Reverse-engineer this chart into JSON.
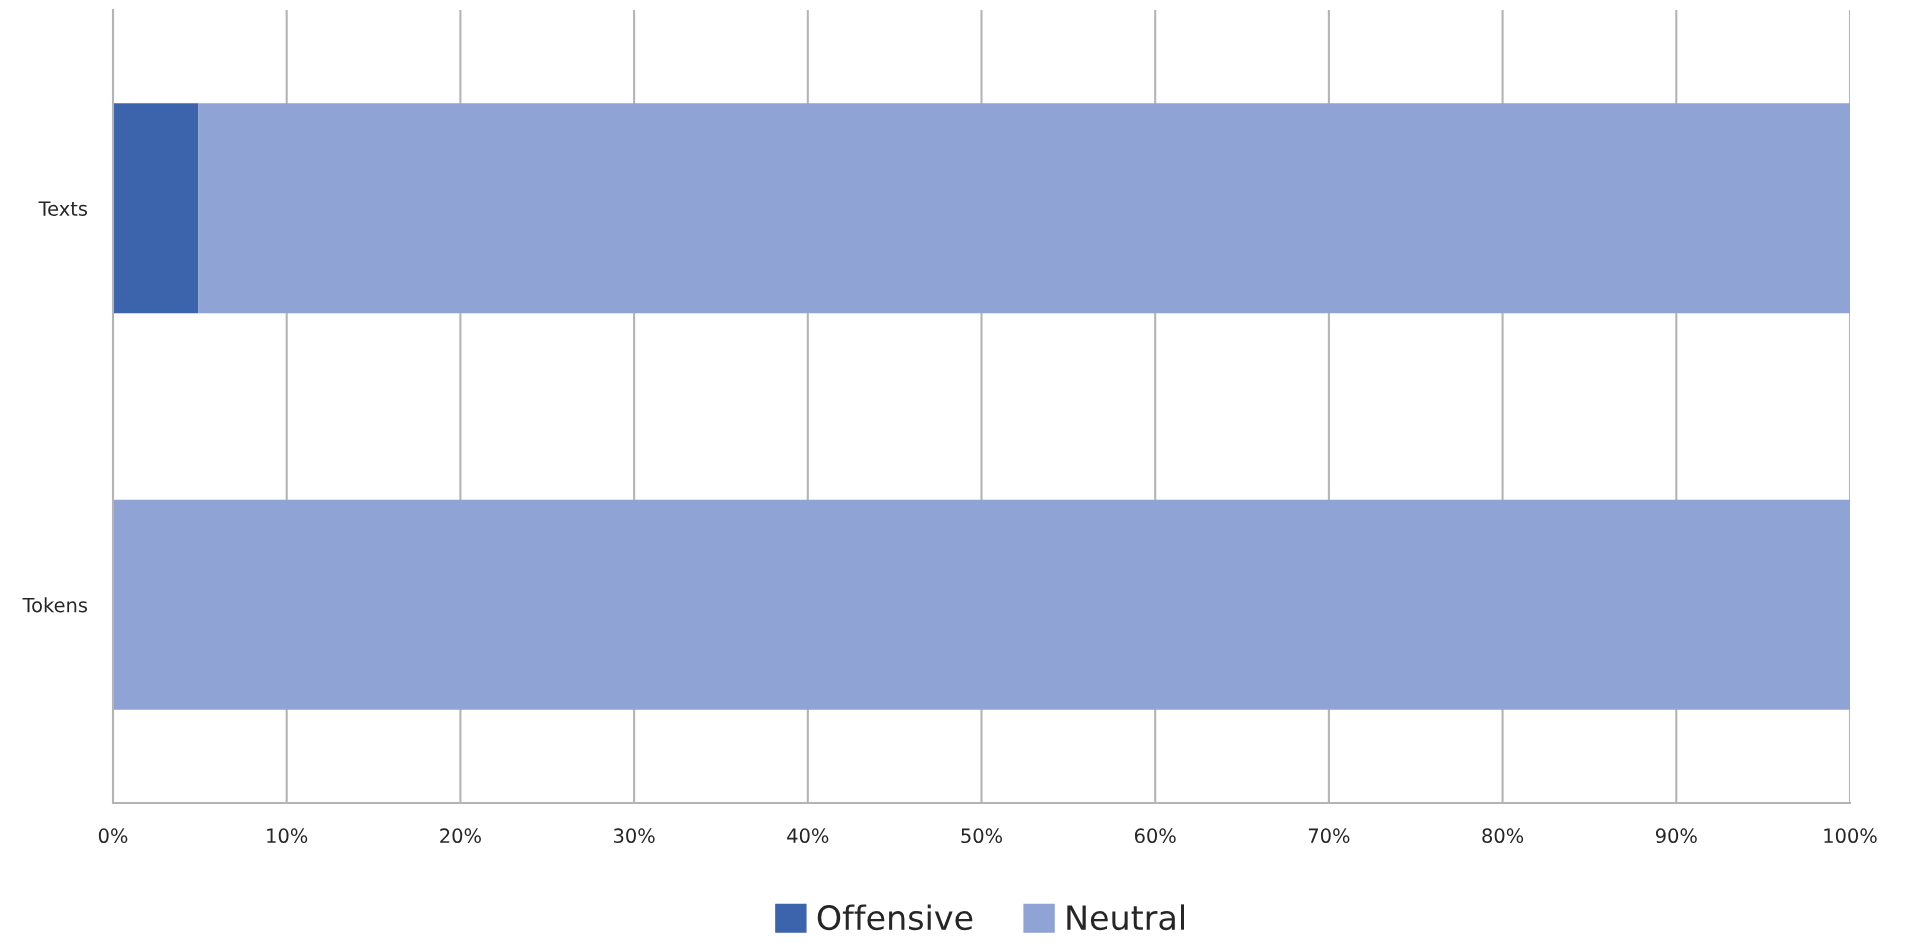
{
  "chart_data": {
    "type": "bar",
    "orientation": "horizontal",
    "stacked": true,
    "categories": [
      "Texts",
      "Tokens"
    ],
    "series": [
      {
        "name": "Offensive",
        "color": "#3c64ac",
        "values": [
          4.9,
          0
        ]
      },
      {
        "name": "Neutral",
        "color": "#8fa3d4",
        "values": [
          95.1,
          100
        ]
      }
    ],
    "xlim": [
      0,
      100
    ],
    "xticks": [
      {
        "value": 0,
        "label": "0%"
      },
      {
        "value": 10,
        "label": "10%"
      },
      {
        "value": 20,
        "label": "20%"
      },
      {
        "value": 30,
        "label": "30%"
      },
      {
        "value": 40,
        "label": "40%"
      },
      {
        "value": 50,
        "label": "50%"
      },
      {
        "value": 60,
        "label": "60%"
      },
      {
        "value": 70,
        "label": "70%"
      },
      {
        "value": 80,
        "label": "80%"
      },
      {
        "value": 90,
        "label": "90%"
      },
      {
        "value": 100,
        "label": "100%"
      }
    ],
    "grid": "x",
    "legend": "bottom"
  }
}
